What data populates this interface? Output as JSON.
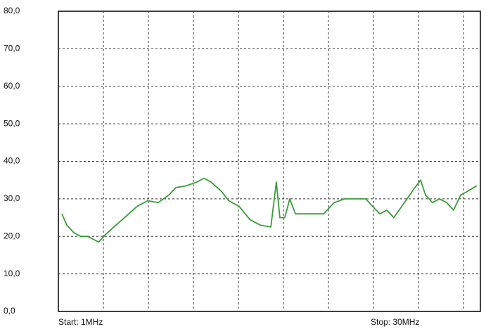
{
  "chart_data": {
    "type": "line",
    "x": [
      1.24,
      1.58,
      2.06,
      2.55,
      3.03,
      3.76,
      4.24,
      4.96,
      5.69,
      6.41,
      7.14,
      7.86,
      8.59,
      9.07,
      9.8,
      10.52,
      11.0,
      11.49,
      12.21,
      12.7,
      13.42,
      14.15,
      14.87,
      15.6,
      15.98,
      16.22,
      16.56,
      16.9,
      17.29,
      18.25,
      19.22,
      19.95,
      20.67,
      21.4,
      22.12,
      22.6,
      23.09,
      23.57,
      24.05,
      24.78,
      25.5,
      25.89,
      26.23,
      26.71,
      27.19,
      27.68,
      28.16,
      28.64,
      29.12,
      29.75
    ],
    "series": [
      {
        "color": "#3c9c3c",
        "values": [
          26,
          23,
          21,
          20,
          20,
          18.5,
          20.5,
          23,
          25.5,
          28,
          29.5,
          29,
          31,
          33,
          33.5,
          34.5,
          35.5,
          34.5,
          32,
          29.5,
          28,
          24.5,
          23,
          22.5,
          34.5,
          25,
          25,
          30,
          26,
          26,
          26,
          29,
          30,
          30,
          30,
          28,
          26,
          27,
          25,
          29,
          33,
          35,
          31,
          29,
          30,
          29,
          27,
          31,
          32,
          33.5
        ]
      }
    ],
    "xlim": [
      1,
      30
    ],
    "ylim": [
      0,
      80
    ],
    "yticks": [
      {
        "value": 0,
        "label": "0,0"
      },
      {
        "value": 10,
        "label": "10,0"
      },
      {
        "value": 20,
        "label": "20,0"
      },
      {
        "value": 30,
        "label": "30,0"
      },
      {
        "value": 40,
        "label": "40,0"
      },
      {
        "value": 50,
        "label": "50,0"
      },
      {
        "value": 60,
        "label": "60,0"
      },
      {
        "value": 70,
        "label": "70,0"
      },
      {
        "value": 80,
        "label": "80,0"
      }
    ],
    "annotations": [
      "Start: 1MHz",
      "Stop: 30MHz"
    ],
    "grid": true
  }
}
